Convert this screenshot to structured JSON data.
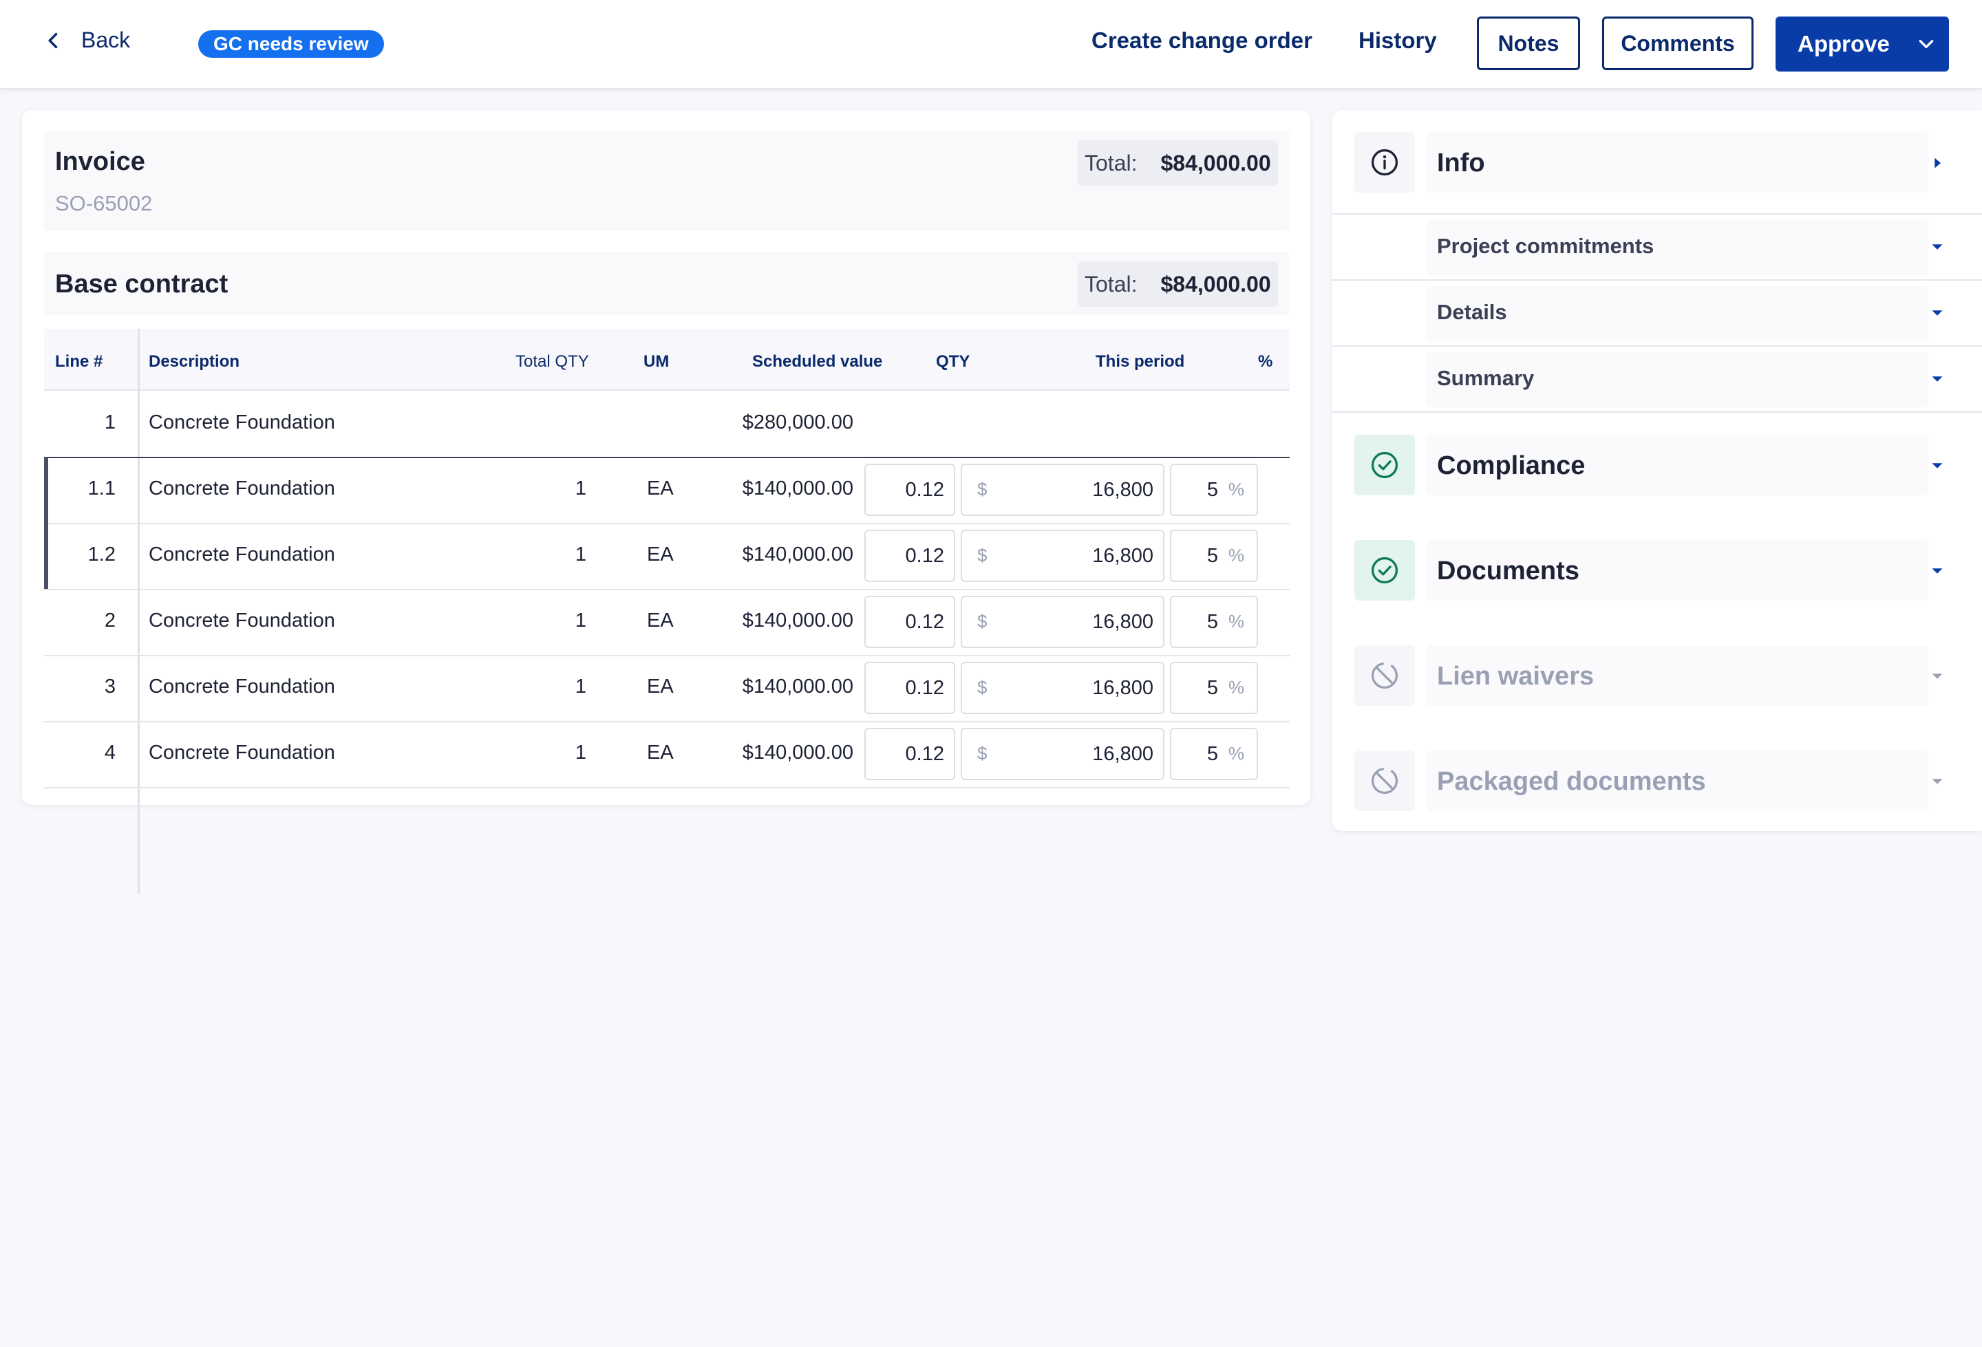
{
  "topbar": {
    "back_label": "Back",
    "status_badge": "GC needs review",
    "create_change_order": "Create change order",
    "history": "History",
    "notes": "Notes",
    "comments": "Comments",
    "approve": "Approve"
  },
  "invoice": {
    "title": "Invoice",
    "number": "SO-65002",
    "total_label": "Total:",
    "total_value": "$84,000.00"
  },
  "base_contract": {
    "title": "Base contract",
    "total_label": "Total:",
    "total_value": "$84,000.00"
  },
  "table": {
    "headers": {
      "line": "Line #",
      "description": "Description",
      "total_qty": "Total QTY",
      "um": "UM",
      "scheduled_value": "Scheduled value",
      "qty": "QTY",
      "this_period": "This period",
      "percent": "%"
    },
    "currency_prefix": "$",
    "percent_suffix": "%",
    "rows": [
      {
        "line": "1",
        "description": "Concrete Foundation",
        "total_qty": "",
        "um": "",
        "scheduled_value": "$280,000.00",
        "qty": "",
        "this_period": "",
        "percent": ""
      },
      {
        "line": "1.1",
        "description": "Concrete Foundation",
        "total_qty": "1",
        "um": "EA",
        "scheduled_value": "$140,000.00",
        "qty": "0.12",
        "this_period": "16,800",
        "percent": "5"
      },
      {
        "line": "1.2",
        "description": "Concrete Foundation",
        "total_qty": "1",
        "um": "EA",
        "scheduled_value": "$140,000.00",
        "qty": "0.12",
        "this_period": "16,800",
        "percent": "5"
      },
      {
        "line": "2",
        "description": "Concrete Foundation",
        "total_qty": "1",
        "um": "EA",
        "scheduled_value": "$140,000.00",
        "qty": "0.12",
        "this_period": "16,800",
        "percent": "5"
      },
      {
        "line": "3",
        "description": "Concrete Foundation",
        "total_qty": "1",
        "um": "EA",
        "scheduled_value": "$140,000.00",
        "qty": "0.12",
        "this_period": "16,800",
        "percent": "5"
      },
      {
        "line": "4",
        "description": "Concrete Foundation",
        "total_qty": "1",
        "um": "EA",
        "scheduled_value": "$140,000.00",
        "qty": "0.12",
        "this_period": "16,800",
        "percent": "5"
      }
    ]
  },
  "sidebar": {
    "info": {
      "title": "Info",
      "icon": "info-icon"
    },
    "info_items": [
      "Project commitments",
      "Details",
      "Summary"
    ],
    "compliance": {
      "title": "Compliance",
      "icon": "check-circle-icon"
    },
    "documents": {
      "title": "Documents",
      "icon": "check-circle-icon"
    },
    "lien_waivers": {
      "title": "Lien waivers",
      "icon": "disabled-icon"
    },
    "packaged_documents": {
      "title": "Packaged documents",
      "icon": "disabled-icon"
    }
  },
  "colors": {
    "brand_navy": "#0a2a6b",
    "primary_button": "#0a3ca8",
    "badge_blue": "#1570ef",
    "success_green": "#0e7a55",
    "muted": "#9aa0b4"
  }
}
